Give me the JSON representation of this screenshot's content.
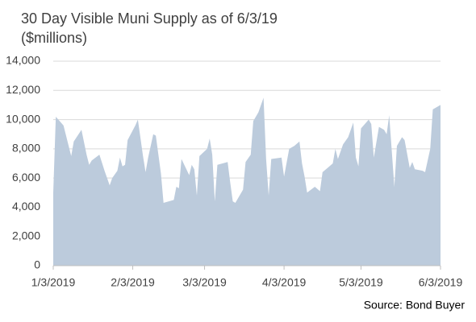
{
  "chart_data": {
    "type": "area",
    "title": "30 Day Visible Muni Supply as of 6/3/19",
    "subtitle": "($millions)",
    "source": "Source: Bond Buyer",
    "color": "#bccbdc",
    "grid": true,
    "xlim": [
      "2019-01-03",
      "2019-06-03"
    ],
    "xticks": [
      {
        "value": "2019-01-03",
        "label": "1/3/2019"
      },
      {
        "value": "2019-02-03",
        "label": "2/3/2019"
      },
      {
        "value": "2019-03-03",
        "label": "3/3/2019"
      },
      {
        "value": "2019-04-03",
        "label": "4/3/2019"
      },
      {
        "value": "2019-05-03",
        "label": "5/3/2019"
      },
      {
        "value": "2019-06-03",
        "label": "6/3/2019"
      }
    ],
    "ylim": [
      0,
      14000
    ],
    "yticks": [
      0,
      {
        "value": 2000,
        "label": "2,000"
      },
      {
        "value": 4000,
        "label": "4,000"
      },
      {
        "value": 6000,
        "label": "6,000"
      },
      {
        "value": 8000,
        "label": "8,000"
      },
      {
        "value": 10000,
        "label": "10,000"
      },
      {
        "value": 12000,
        "label": "12,000"
      },
      {
        "value": 14000,
        "label": "14,000"
      }
    ],
    "x": [
      "2019-01-03",
      "2019-01-04",
      "2019-01-07",
      "2019-01-10",
      "2019-01-11",
      "2019-01-14",
      "2019-01-16",
      "2019-01-17",
      "2019-01-18",
      "2019-01-21",
      "2019-01-23",
      "2019-01-25",
      "2019-01-26",
      "2019-01-28",
      "2019-01-29",
      "2019-01-30",
      "2019-01-31",
      "2019-02-01",
      "2019-02-04",
      "2019-02-05",
      "2019-02-07",
      "2019-02-08",
      "2019-02-09",
      "2019-02-11",
      "2019-02-12",
      "2019-02-14",
      "2019-02-15",
      "2019-02-19",
      "2019-02-20",
      "2019-02-21",
      "2019-02-22",
      "2019-02-25",
      "2019-02-26",
      "2019-02-27",
      "2019-02-28",
      "2019-03-01",
      "2019-03-04",
      "2019-03-05",
      "2019-03-06",
      "2019-03-07",
      "2019-03-08",
      "2019-03-12",
      "2019-03-13",
      "2019-03-14",
      "2019-03-15",
      "2019-03-18",
      "2019-03-19",
      "2019-03-21",
      "2019-03-22",
      "2019-03-24",
      "2019-03-26",
      "2019-03-27",
      "2019-03-28",
      "2019-03-29",
      "2019-04-02",
      "2019-04-03",
      "2019-04-05",
      "2019-04-07",
      "2019-04-09",
      "2019-04-10",
      "2019-04-11",
      "2019-04-12",
      "2019-04-15",
      "2019-04-17",
      "2019-04-18",
      "2019-04-20",
      "2019-04-22",
      "2019-04-23",
      "2019-04-24",
      "2019-04-26",
      "2019-04-28",
      "2019-04-30",
      "2019-05-01",
      "2019-05-02",
      "2019-05-03",
      "2019-05-06",
      "2019-05-07",
      "2019-05-08",
      "2019-05-10",
      "2019-05-12",
      "2019-05-13",
      "2019-05-14",
      "2019-05-16",
      "2019-05-17",
      "2019-05-19",
      "2019-05-20",
      "2019-05-22",
      "2019-05-23",
      "2019-05-24",
      "2019-05-27",
      "2019-05-28",
      "2019-05-30",
      "2019-05-31",
      "2019-06-03"
    ],
    "values": [
      5000,
      10200,
      9600,
      7500,
      8500,
      9300,
      7600,
      6900,
      7200,
      7600,
      6500,
      5500,
      6000,
      6500,
      7400,
      6800,
      6900,
      8600,
      9600,
      10000,
      7500,
      6400,
      7400,
      9000,
      8900,
      6300,
      4300,
      4500,
      5400,
      5300,
      7300,
      6200,
      6900,
      6600,
      4800,
      7500,
      8000,
      8700,
      7600,
      4400,
      6900,
      7100,
      5700,
      4400,
      4300,
      5200,
      7100,
      7600,
      9900,
      10500,
      11500,
      7300,
      4800,
      7300,
      7400,
      6100,
      8000,
      8200,
      8500,
      7000,
      6100,
      5000,
      5400,
      5100,
      6400,
      6700,
      7000,
      8000,
      7300,
      8300,
      8800,
      9800,
      7400,
      6800,
      9400,
      10000,
      9700,
      7400,
      9500,
      9300,
      9000,
      10300,
      5400,
      8200,
      8800,
      8600,
      6700,
      7100,
      6600,
      6500,
      6400,
      8000,
      10700,
      11000
    ]
  }
}
